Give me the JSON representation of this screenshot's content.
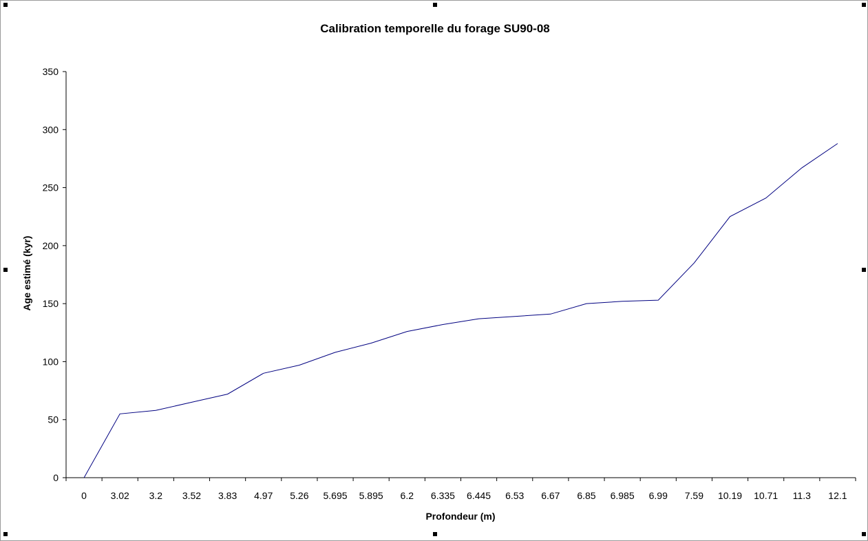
{
  "chart_data": {
    "type": "line",
    "title": "Calibration temporelle du forage SU90-08",
    "xlabel": "Profondeur (m)",
    "ylabel": "Age estimé (kyr)",
    "categories": [
      "0",
      "3.02",
      "3.2",
      "3.52",
      "3.83",
      "4.97",
      "5.26",
      "5.695",
      "5.895",
      "6.2",
      "6.335",
      "6.445",
      "6.53",
      "6.67",
      "6.85",
      "6.985",
      "6.99",
      "7.59",
      "10.19",
      "10.71",
      "11.3",
      "12.1"
    ],
    "series": [
      {
        "values": [
          0,
          55,
          58,
          65,
          72,
          90,
          97,
          108,
          116,
          126,
          132,
          137,
          139,
          141,
          150,
          152,
          153,
          185,
          225,
          241,
          267,
          288
        ]
      }
    ],
    "yticks": [
      0,
      50,
      100,
      150,
      200,
      250,
      300,
      350
    ],
    "ylim": [
      0,
      350
    ],
    "grid": false,
    "legend": "none",
    "line_color": "#000080"
  }
}
